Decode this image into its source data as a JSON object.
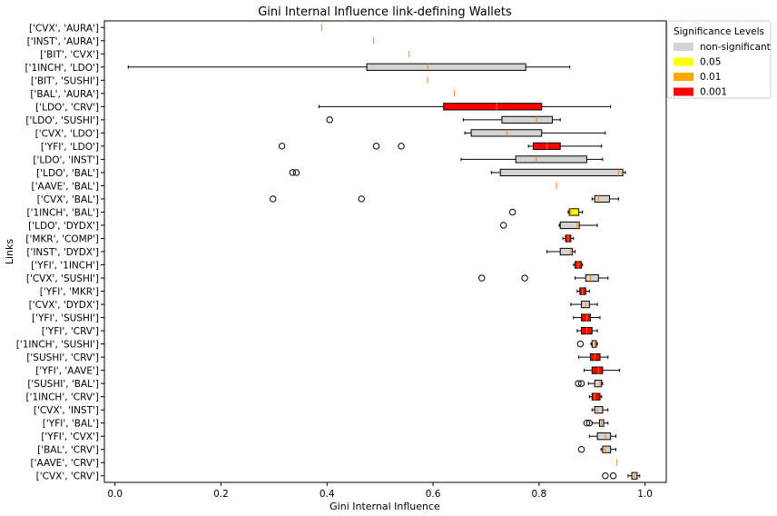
{
  "chart_data": {
    "type": "boxplot",
    "orientation": "horizontal",
    "title": "Gini Internal Influence link-defining Wallets",
    "xlabel": "Gini Internal Influence",
    "ylabel": "Links",
    "xlim": [
      -0.02,
      1.04
    ],
    "xticks": [
      "0.0",
      "0.2",
      "0.4",
      "0.6",
      "0.8",
      "1.0"
    ],
    "xtick_values": [
      0,
      0.2,
      0.4,
      0.6,
      0.8,
      1.0
    ],
    "legend": {
      "title": "Significance Levels",
      "placement": "outside-right",
      "entries": [
        {
          "label": "non-significant",
          "color": "#d3d3d3"
        },
        {
          "label": "0.05",
          "color": "#ffff00"
        },
        {
          "label": "0.01",
          "color": "#ffa500"
        },
        {
          "label": "0.001",
          "color": "#ff0000"
        }
      ]
    },
    "median_color": "#ff7f0e",
    "boxes": [
      {
        "label": "['CVX', 'AURA']",
        "whislo": 0.39,
        "q1": 0.39,
        "med": 0.39,
        "q3": 0.39,
        "whishi": 0.39,
        "fliers": [],
        "sig": "non-significant"
      },
      {
        "label": "['INST', 'AURA']",
        "whislo": 0.488,
        "q1": 0.488,
        "med": 0.488,
        "q3": 0.488,
        "whishi": 0.488,
        "fliers": [],
        "sig": "non-significant"
      },
      {
        "label": "['BIT', 'CVX']",
        "whislo": 0.555,
        "q1": 0.555,
        "med": 0.555,
        "q3": 0.555,
        "whishi": 0.555,
        "fliers": [],
        "sig": "non-significant"
      },
      {
        "label": "['1INCH', 'LDO']",
        "whislo": 0.025,
        "q1": 0.475,
        "med": 0.59,
        "q3": 0.775,
        "whishi": 0.858,
        "fliers": [],
        "sig": "non-significant"
      },
      {
        "label": "['BIT', 'SUSHI']",
        "whislo": 0.59,
        "q1": 0.59,
        "med": 0.59,
        "q3": 0.59,
        "whishi": 0.59,
        "fliers": [],
        "sig": "non-significant"
      },
      {
        "label": "['BAL', 'AURA']",
        "whislo": 0.64,
        "q1": 0.64,
        "med": 0.64,
        "q3": 0.64,
        "whishi": 0.64,
        "fliers": [],
        "sig": "non-significant"
      },
      {
        "label": "['LDO', 'CRV']",
        "whislo": 0.385,
        "q1": 0.62,
        "med": 0.72,
        "q3": 0.805,
        "whishi": 0.935,
        "fliers": [],
        "sig": "0.001"
      },
      {
        "label": "['LDO', 'SUSHI']",
        "whislo": 0.657,
        "q1": 0.73,
        "med": 0.795,
        "q3": 0.825,
        "whishi": 0.84,
        "fliers": [
          0.405
        ],
        "sig": "non-significant"
      },
      {
        "label": "['CVX', 'LDO']",
        "whislo": 0.66,
        "q1": 0.672,
        "med": 0.74,
        "q3": 0.805,
        "whishi": 0.925,
        "fliers": [],
        "sig": "non-significant"
      },
      {
        "label": "['YFI', 'LDO']",
        "whislo": 0.78,
        "q1": 0.789,
        "med": 0.815,
        "q3": 0.84,
        "whishi": 0.918,
        "fliers": [
          0.315,
          0.493,
          0.54
        ],
        "sig": "0.001"
      },
      {
        "label": "['LDO', 'INST']",
        "whislo": 0.653,
        "q1": 0.756,
        "med": 0.795,
        "q3": 0.89,
        "whishi": 0.92,
        "fliers": [],
        "sig": "non-significant"
      },
      {
        "label": "['LDO', 'BAL']",
        "whislo": 0.71,
        "q1": 0.727,
        "med": 0.95,
        "q3": 0.958,
        "whishi": 0.963,
        "fliers": [
          0.335,
          0.342
        ],
        "sig": "non-significant"
      },
      {
        "label": "['AAVE', 'BAL']",
        "whislo": 0.833,
        "q1": 0.833,
        "med": 0.833,
        "q3": 0.833,
        "whishi": 0.833,
        "fliers": [],
        "sig": "non-significant"
      },
      {
        "label": "['CVX', 'BAL']",
        "whislo": 0.9,
        "q1": 0.905,
        "med": 0.912,
        "q3": 0.933,
        "whishi": 0.95,
        "fliers": [
          0.298,
          0.465
        ],
        "sig": "non-significant"
      },
      {
        "label": "['1INCH', 'BAL']",
        "whislo": 0.855,
        "q1": 0.857,
        "med": 0.86,
        "q3": 0.875,
        "whishi": 0.882,
        "fliers": [
          0.75
        ],
        "sig": "0.05"
      },
      {
        "label": "['LDO', 'DYDX']",
        "whislo": 0.838,
        "q1": 0.84,
        "med": 0.872,
        "q3": 0.876,
        "whishi": 0.91,
        "fliers": [
          0.733
        ],
        "sig": "non-significant"
      },
      {
        "label": "['MKR', 'COMP']",
        "whislo": 0.845,
        "q1": 0.85,
        "med": 0.855,
        "q3": 0.86,
        "whishi": 0.865,
        "fliers": [],
        "sig": "0.001"
      },
      {
        "label": "['INST', 'DYDX']",
        "whislo": 0.815,
        "q1": 0.84,
        "med": 0.86,
        "q3": 0.863,
        "whishi": 0.868,
        "fliers": [],
        "sig": "non-significant"
      },
      {
        "label": "['YFI', '1INCH']",
        "whislo": 0.865,
        "q1": 0.868,
        "med": 0.874,
        "q3": 0.88,
        "whishi": 0.882,
        "fliers": [],
        "sig": "0.001"
      },
      {
        "label": "['CVX', 'SUSHI']",
        "whislo": 0.868,
        "q1": 0.888,
        "med": 0.897,
        "q3": 0.912,
        "whishi": 0.93,
        "fliers": [
          0.692,
          0.773
        ],
        "sig": "non-significant"
      },
      {
        "label": "['YFI', 'MKR']",
        "whislo": 0.872,
        "q1": 0.877,
        "med": 0.882,
        "q3": 0.888,
        "whishi": 0.895,
        "fliers": [],
        "sig": "0.001"
      },
      {
        "label": "['CVX', 'DYDX']",
        "whislo": 0.86,
        "q1": 0.88,
        "med": 0.888,
        "q3": 0.895,
        "whishi": 0.91,
        "fliers": [],
        "sig": "non-significant"
      },
      {
        "label": "['YFI', 'SUSHI']",
        "whislo": 0.865,
        "q1": 0.88,
        "med": 0.89,
        "q3": 0.897,
        "whishi": 0.915,
        "fliers": [],
        "sig": "0.001"
      },
      {
        "label": "['YFI', 'CRV']",
        "whislo": 0.872,
        "q1": 0.88,
        "med": 0.89,
        "q3": 0.9,
        "whishi": 0.91,
        "fliers": [],
        "sig": "0.001"
      },
      {
        "label": "['1INCH', 'SUSHI']",
        "whislo": 0.898,
        "q1": 0.9,
        "med": 0.905,
        "q3": 0.908,
        "whishi": 0.91,
        "fliers": [
          0.878
        ],
        "sig": "non-significant"
      },
      {
        "label": "['SUSHI', 'CRV']",
        "whislo": 0.875,
        "q1": 0.897,
        "med": 0.905,
        "q3": 0.915,
        "whishi": 0.93,
        "fliers": [],
        "sig": "0.001"
      },
      {
        "label": "['YFI', 'AAVE']",
        "whislo": 0.885,
        "q1": 0.9,
        "med": 0.912,
        "q3": 0.92,
        "whishi": 0.952,
        "fliers": [],
        "sig": "0.001"
      },
      {
        "label": "['SUSHI', 'BAL']",
        "whislo": 0.893,
        "q1": 0.905,
        "med": 0.915,
        "q3": 0.918,
        "whishi": 0.92,
        "fliers": [
          0.874,
          0.88
        ],
        "sig": "non-significant"
      },
      {
        "label": "['1INCH', 'CRV']",
        "whislo": 0.895,
        "q1": 0.9,
        "med": 0.905,
        "q3": 0.915,
        "whishi": 0.918,
        "fliers": [],
        "sig": "0.001"
      },
      {
        "label": "['CVX', 'INST']",
        "whislo": 0.9,
        "q1": 0.905,
        "med": 0.91,
        "q3": 0.92,
        "whishi": 0.93,
        "fliers": [],
        "sig": "non-significant"
      },
      {
        "label": "['YFI', 'BAL']",
        "whislo": 0.9,
        "q1": 0.914,
        "med": 0.918,
        "q3": 0.922,
        "whishi": 0.93,
        "fliers": [
          0.89,
          0.895
        ],
        "sig": "non-significant"
      },
      {
        "label": "['YFI', 'CVX']",
        "whislo": 0.895,
        "q1": 0.91,
        "med": 0.925,
        "q3": 0.935,
        "whishi": 0.945,
        "fliers": [],
        "sig": "non-significant"
      },
      {
        "label": "['BAL', 'CRV']",
        "whislo": 0.917,
        "q1": 0.92,
        "med": 0.925,
        "q3": 0.935,
        "whishi": 0.945,
        "fliers": [
          0.88
        ],
        "sig": "non-significant"
      },
      {
        "label": "['AAVE', 'CRV']",
        "whislo": 0.947,
        "q1": 0.947,
        "med": 0.947,
        "q3": 0.947,
        "whishi": 0.947,
        "fliers": [],
        "sig": "non-significant"
      },
      {
        "label": "['CVX', 'CRV']",
        "whislo": 0.968,
        "q1": 0.975,
        "med": 0.98,
        "q3": 0.985,
        "whishi": 0.99,
        "fliers": [
          0.925,
          0.94
        ],
        "sig": "non-significant"
      }
    ]
  }
}
